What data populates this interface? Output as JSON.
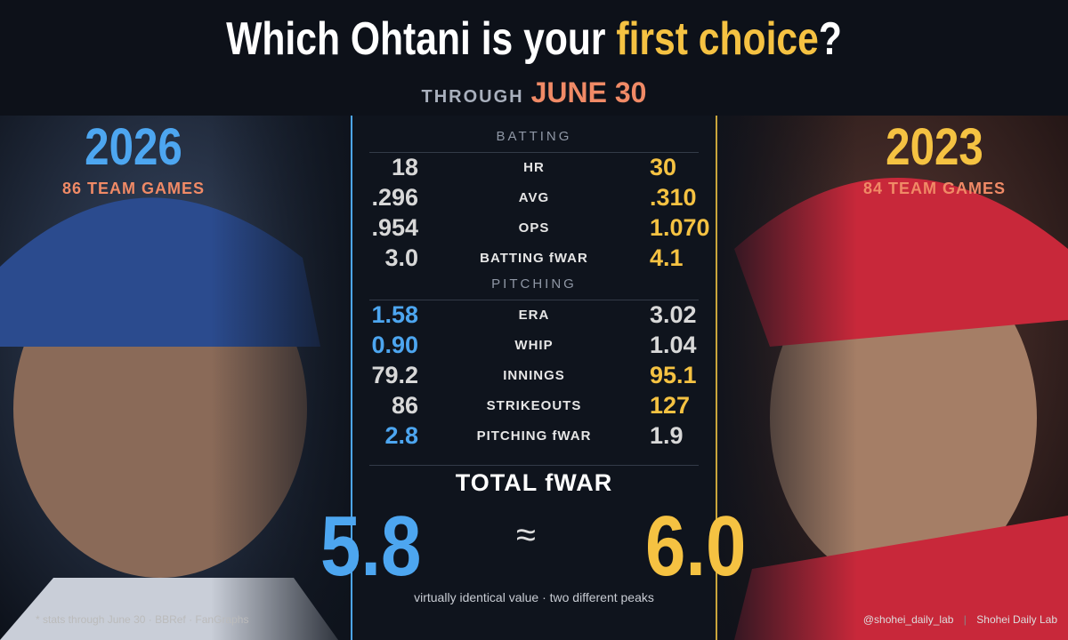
{
  "header": {
    "title": "Which Ohtani is your",
    "title_highlight": "first choice",
    "title_end": "?",
    "subtitle_lead": "THROUGH",
    "subtitle_date": "JUNE 30"
  },
  "players": [
    {
      "year": "2026",
      "games": "86 TEAM GAMES"
    },
    {
      "year": "2023",
      "games": "84 TEAM GAMES"
    }
  ],
  "sections": [
    {
      "title": "BATTING",
      "rows": [
        {
          "stat": "HR",
          "left": "18",
          "right": "30",
          "leader": "right"
        },
        {
          "stat": "AVG",
          "left": ".296",
          "right": ".310",
          "leader": "right"
        },
        {
          "stat": "OPS",
          "left": ".954",
          "right": "1.070",
          "leader": "right"
        },
        {
          "stat": "BATTING fWAR",
          "left": "3.0",
          "right": "4.1",
          "leader": "right"
        }
      ]
    },
    {
      "title": "PITCHING",
      "rows": [
        {
          "stat": "ERA",
          "left": "1.58",
          "right": "3.02",
          "leader": "left"
        },
        {
          "stat": "WHIP",
          "left": "0.90",
          "right": "1.04",
          "leader": "left"
        },
        {
          "stat": "INNINGS",
          "left": "79.2",
          "right": "95.1",
          "leader": "right"
        },
        {
          "stat": "STRIKEOUTS",
          "left": "86",
          "right": "127",
          "leader": "right"
        },
        {
          "stat": "PITCHING fWAR",
          "left": "2.8",
          "right": "1.9",
          "leader": "left"
        }
      ]
    }
  ],
  "total": {
    "label": "TOTAL fWAR",
    "left": "5.8",
    "symbol": "≈",
    "right": "6.0",
    "note": "virtually identical value · two different peaks"
  },
  "footer": {
    "source": "* stats through June 30 · BBRef · FanGraphs",
    "handle": "@shohei_daily_lab",
    "separator": "|",
    "brand": "Shohei Daily Lab"
  }
}
